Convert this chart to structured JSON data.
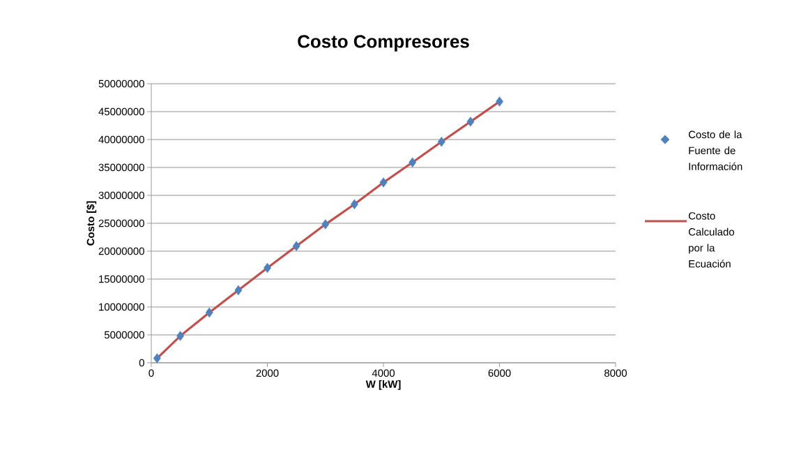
{
  "chart_data": {
    "type": "scatter",
    "title": "Costo Compresores",
    "xlabel": "W [kW]",
    "ylabel": "Costo [$]",
    "xlim": [
      0,
      8000
    ],
    "ylim": [
      0,
      50000000
    ],
    "xticks": [
      0,
      2000,
      4000,
      6000,
      8000
    ],
    "yticks": [
      0,
      5000000,
      10000000,
      15000000,
      20000000,
      25000000,
      30000000,
      35000000,
      40000000,
      45000000,
      50000000
    ],
    "grid": "y",
    "legend": "right",
    "series": [
      {
        "name": "Costo de la Fuente de Información",
        "marker": "diamond",
        "color": "#4f81bd",
        "x": [
          100,
          500,
          1000,
          1500,
          2000,
          2500,
          3000,
          3500,
          4000,
          4500,
          5000,
          5500,
          6000
        ],
        "values": [
          800000,
          4800000,
          9000000,
          13000000,
          17000000,
          20900000,
          24800000,
          28400000,
          32300000,
          35900000,
          39600000,
          43200000,
          46800000
        ]
      },
      {
        "name": "Costo Calculado por la Ecuación",
        "type": "line",
        "marker": "none",
        "line_style": "solid",
        "color": "#c0504d",
        "x": [
          100,
          500,
          1000,
          1500,
          2000,
          2500,
          3000,
          3500,
          4000,
          4500,
          5000,
          5500,
          6000
        ],
        "values": [
          800000,
          4800000,
          9000000,
          13000000,
          17000000,
          20900000,
          24800000,
          28400000,
          32300000,
          35900000,
          39600000,
          43200000,
          46800000
        ]
      }
    ]
  }
}
